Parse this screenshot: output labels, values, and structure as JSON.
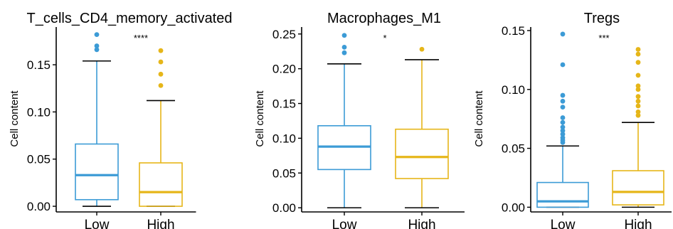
{
  "chart_data": [
    {
      "type": "boxplot",
      "title": "T_cells_CD4_memory_activated",
      "ylabel": "Cell content",
      "ylim": [
        -0.006,
        0.19
      ],
      "yticks": [
        0.0,
        0.05,
        0.1,
        0.15
      ],
      "ytick_labels": [
        "0.00",
        "0.05",
        "0.10",
        "0.15"
      ],
      "significance": "****",
      "groups": [
        {
          "name": "Low",
          "color": "#3C9BD6",
          "min": 0.0,
          "q1": 0.007,
          "median": 0.033,
          "q3": 0.066,
          "whisker_high": 0.154,
          "outliers": [
            0.182,
            0.17,
            0.166
          ]
        },
        {
          "name": "High",
          "color": "#E6B619",
          "min": 0.0,
          "q1": 0.0,
          "median": 0.015,
          "q3": 0.046,
          "whisker_high": 0.112,
          "outliers": [
            0.165,
            0.153,
            0.14,
            0.128
          ]
        }
      ]
    },
    {
      "type": "boxplot",
      "title": "Macrophages_M1",
      "ylabel": "Cell content",
      "ylim": [
        -0.006,
        0.26
      ],
      "yticks": [
        0.0,
        0.05,
        0.1,
        0.15,
        0.2,
        0.25
      ],
      "ytick_labels": [
        "0.00",
        "0.05",
        "0.10",
        "0.15",
        "0.20",
        "0.25"
      ],
      "significance": "*",
      "groups": [
        {
          "name": "Low",
          "color": "#3C9BD6",
          "min": 0.0,
          "q1": 0.055,
          "median": 0.088,
          "q3": 0.118,
          "whisker_high": 0.207,
          "outliers": [
            0.248,
            0.231,
            0.223
          ]
        },
        {
          "name": "High",
          "color": "#E6B619",
          "min": 0.0,
          "q1": 0.042,
          "median": 0.073,
          "q3": 0.113,
          "whisker_high": 0.213,
          "outliers": [
            0.228
          ]
        }
      ]
    },
    {
      "type": "boxplot",
      "title": "Tregs",
      "ylabel": "Cell content",
      "ylim": [
        -0.004,
        0.153
      ],
      "yticks": [
        0.0,
        0.05,
        0.1,
        0.15
      ],
      "ytick_labels": [
        "0.00",
        "0.05",
        "0.10",
        "0.15"
      ],
      "significance": "***",
      "groups": [
        {
          "name": "Low",
          "color": "#3C9BD6",
          "min": 0.0,
          "q1": 0.0,
          "median": 0.005,
          "q3": 0.021,
          "whisker_high": 0.052,
          "outliers": [
            0.147,
            0.121,
            0.095,
            0.09,
            0.085,
            0.076,
            0.072,
            0.068,
            0.065,
            0.062,
            0.059,
            0.057,
            0.055
          ]
        },
        {
          "name": "High",
          "color": "#E6B619",
          "min": 0.0,
          "q1": 0.002,
          "median": 0.013,
          "q3": 0.031,
          "whisker_high": 0.072,
          "outliers": [
            0.134,
            0.13,
            0.123,
            0.112,
            0.103,
            0.1,
            0.094,
            0.09,
            0.086,
            0.081,
            0.078
          ]
        }
      ]
    }
  ]
}
